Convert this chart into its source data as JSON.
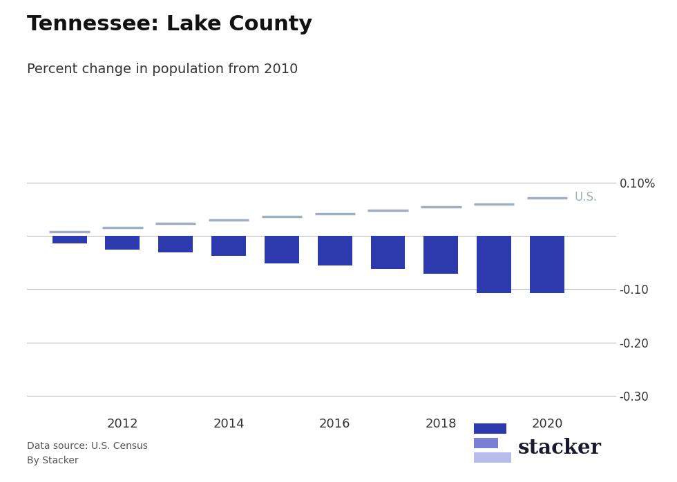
{
  "title": "Tennessee: Lake County",
  "subtitle": "Percent change in population from 2010",
  "title_fontsize": 22,
  "subtitle_fontsize": 14,
  "bar_years": [
    2011,
    2012,
    2013,
    2014,
    2015,
    2016,
    2017,
    2018,
    2019,
    2020
  ],
  "bar_values": [
    -0.014,
    -0.026,
    -0.031,
    -0.038,
    -0.051,
    -0.055,
    -0.062,
    -0.071,
    -0.107,
    -0.1072
  ],
  "us_years": [
    2011,
    2012,
    2013,
    2014,
    2015,
    2016,
    2017,
    2018,
    2019,
    2020
  ],
  "us_values": [
    0.008,
    0.016,
    0.023,
    0.03,
    0.036,
    0.042,
    0.048,
    0.055,
    0.06,
    0.071
  ],
  "bar_color": "#2d3aad",
  "us_color": "#a0aec0",
  "us_label": "U.S.",
  "ylim": [
    -0.335,
    0.135
  ],
  "yticks": [
    0.1,
    0.0,
    -0.1,
    -0.2,
    -0.3
  ],
  "ytick_labels": [
    "0.10%",
    "",
    "-0.10",
    "-0.20",
    "-0.30"
  ],
  "background_color": "#ffffff",
  "footnote1": "Data source: U.S. Census",
  "footnote2": "By Stacker",
  "grid_color": "#bbbbbb",
  "stacker_colors": [
    "#2d3aad",
    "#7b7fd4",
    "#b8bcec"
  ],
  "stacker_text_color": "#1a1a2e"
}
